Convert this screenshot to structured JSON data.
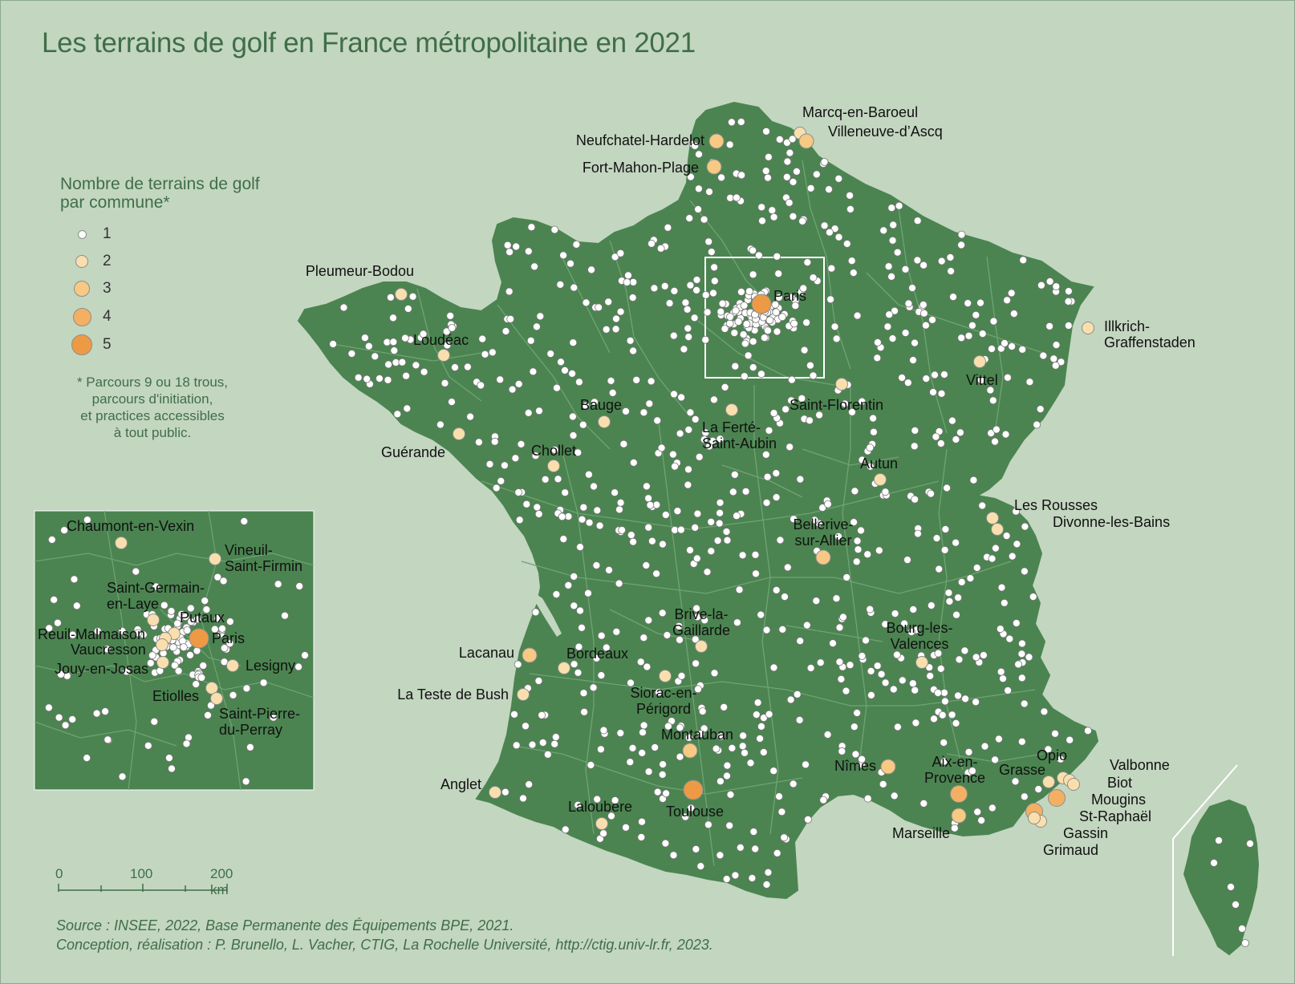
{
  "title": "Les terrains de golf en France métropolitaine en 2021",
  "legend": {
    "title_line1": "Nombre de terrains de golf",
    "title_line2": "par commune*",
    "entries": [
      {
        "label": "1",
        "color": "#ffffff"
      },
      {
        "label": "2",
        "color": "#f9dfae"
      },
      {
        "label": "3",
        "color": "#f7c983"
      },
      {
        "label": "4",
        "color": "#f3b063"
      },
      {
        "label": "5",
        "color": "#ee9a45"
      }
    ],
    "note": [
      "* Parcours 9 ou 18 trous,",
      "parcours d'initiation,",
      "et practices accessibles",
      "à tout public."
    ]
  },
  "scale": {
    "ticks": [
      "0",
      "100",
      "200 km"
    ]
  },
  "source": {
    "line1": "Source : INSEE, 2022, Base Permanente des Équipements BPE, 2021.",
    "line2": "Conception, réalisation : P. Brunello, L. Vacher, CTIG, La Rochelle Université, http://ctig.univ-lr.fr, 2023."
  },
  "colors": {
    "background": "#c3d6c0",
    "land": "#4b8450",
    "borders": "#6fa474",
    "title": "#3f6e49"
  },
  "places": [
    {
      "name": "Marcq-en-Baroeul",
      "count": 2
    },
    {
      "name": "Villeneuve-d'Ascq",
      "count": 3
    },
    {
      "name": "Neufchatel-Hardelot",
      "count": 3
    },
    {
      "name": "Fort-Mahon-Plage",
      "count": 3
    },
    {
      "name": "Pleumeur-Bodou",
      "count": 2
    },
    {
      "name": "Loudéac",
      "count": 2
    },
    {
      "name": "Paris",
      "count": 5
    },
    {
      "name": "Illkrich-Graffenstaden",
      "count": 2
    },
    {
      "name": "Vittel",
      "count": 2
    },
    {
      "name": "Saint-Florentin",
      "count": 2
    },
    {
      "name": "Bauge",
      "count": 2
    },
    {
      "name": "La Ferté-Saint-Aubin",
      "count": 2
    },
    {
      "name": "Guérande",
      "count": 2
    },
    {
      "name": "Chollet",
      "count": 2
    },
    {
      "name": "Autun",
      "count": 2
    },
    {
      "name": "Les Rousses",
      "count": 2
    },
    {
      "name": "Divonne-les-Bains",
      "count": 2
    },
    {
      "name": "Bellerive-sur-Allier",
      "count": 3
    },
    {
      "name": "Brive-la-Gaillarde",
      "count": 2
    },
    {
      "name": "Lacanau",
      "count": 3
    },
    {
      "name": "Bordeaux",
      "count": 2
    },
    {
      "name": "Bourg-les-Valences",
      "count": 2
    },
    {
      "name": "La Teste de Bush",
      "count": 2
    },
    {
      "name": "Siorac-en-Périgord",
      "count": 2
    },
    {
      "name": "Montauban",
      "count": 3
    },
    {
      "name": "Nîmes",
      "count": 3
    },
    {
      "name": "Aix-en-Provence",
      "count": 4
    },
    {
      "name": "Grasse",
      "count": 2
    },
    {
      "name": "Opio",
      "count": 2
    },
    {
      "name": "Valbonne",
      "count": 2
    },
    {
      "name": "Biot",
      "count": 2
    },
    {
      "name": "Mougins",
      "count": 4
    },
    {
      "name": "St-Raphaël",
      "count": 4
    },
    {
      "name": "Gassin",
      "count": 2
    },
    {
      "name": "Grimaud",
      "count": 2
    },
    {
      "name": "Anglet",
      "count": 2
    },
    {
      "name": "Toulouse",
      "count": 5
    },
    {
      "name": "Laloubere",
      "count": 2
    },
    {
      "name": "Marseille",
      "count": 3
    }
  ],
  "inset_places": [
    {
      "name": "Chaumont-en-Vexin",
      "count": 2
    },
    {
      "name": "Vineuil-Saint-Firmin",
      "count": 2
    },
    {
      "name": "Saint-Germain-en-Laye",
      "count": 2
    },
    {
      "name": "Putaux",
      "count": 2
    },
    {
      "name": "Reuil-Malmaison",
      "count": 2
    },
    {
      "name": "Paris",
      "count": 5
    },
    {
      "name": "Vaucresson",
      "count": 2
    },
    {
      "name": "Lesigny",
      "count": 2
    },
    {
      "name": "Jouy-en-Josas",
      "count": 2
    },
    {
      "name": "Etiolles",
      "count": 2
    },
    {
      "name": "Saint-Pierre-du-Perray",
      "count": 2
    }
  ]
}
